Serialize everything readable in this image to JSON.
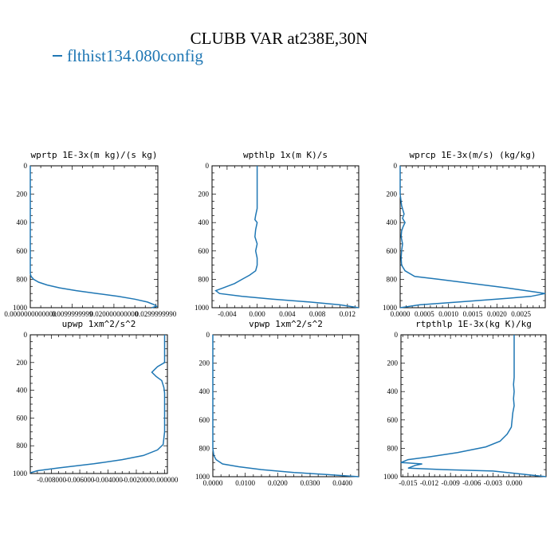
{
  "title": "CLUBB VAR at238E,30N",
  "legend_label": "flthist134.080config",
  "colors": {
    "series": "#1f77b4",
    "axes": "#000000"
  },
  "chart_data": [
    {
      "type": "line",
      "title": "wprtp  1E-3x(m kg)/(s kg)",
      "xlim": [
        0,
        0.0305
      ],
      "ylim": [
        1000,
        0
      ],
      "xticks": [
        0,
        0.01,
        0.02,
        0.03
      ],
      "xtick_labels": [
        "0.0000000000000",
        "0.0099999999",
        "0.020000000000",
        "0.0299999990"
      ],
      "yticks": [
        0,
        200,
        400,
        600,
        800,
        1000
      ],
      "series": [
        {
          "points": [
            [
              0.0,
              0
            ],
            [
              0.0,
              100
            ],
            [
              0.0,
              200
            ],
            [
              0.0,
              300
            ],
            [
              0.0,
              400
            ],
            [
              0.0,
              500
            ],
            [
              0.0,
              600
            ],
            [
              0.0,
              700
            ],
            [
              0.0,
              760
            ],
            [
              0.0002,
              780
            ],
            [
              0.0008,
              800
            ],
            [
              0.002,
              820
            ],
            [
              0.004,
              840
            ],
            [
              0.007,
              860
            ],
            [
              0.011,
              880
            ],
            [
              0.016,
              900
            ],
            [
              0.021,
              920
            ],
            [
              0.025,
              940
            ],
            [
              0.028,
              960
            ],
            [
              0.0297,
              980
            ],
            [
              0.0302,
              990
            ],
            [
              0.029,
              1000
            ]
          ]
        }
      ]
    },
    {
      "type": "line",
      "title": "wpthlp  1x(m K)/s",
      "xlim": [
        -0.006,
        0.0135
      ],
      "ylim": [
        1000,
        0
      ],
      "xticks": [
        -0.004,
        0,
        0.004,
        0.008,
        0.012
      ],
      "xtick_labels": [
        "-0.004",
        "0.000",
        "0.004",
        "0.008",
        "0.012"
      ],
      "yticks": [
        0,
        200,
        400,
        600,
        800,
        1000
      ],
      "series": [
        {
          "points": [
            [
              0.0,
              0
            ],
            [
              0.0,
              100
            ],
            [
              0.0,
              200
            ],
            [
              0.0,
              300
            ],
            [
              -0.0002,
              350
            ],
            [
              -0.0003,
              380
            ],
            [
              0.0,
              400
            ],
            [
              -0.0002,
              450
            ],
            [
              -0.0003,
              500
            ],
            [
              0.0,
              550
            ],
            [
              -0.0002,
              600
            ],
            [
              0.0,
              650
            ],
            [
              0.0,
              700
            ],
            [
              -0.0002,
              740
            ],
            [
              -0.001,
              770
            ],
            [
              -0.002,
              800
            ],
            [
              -0.003,
              830
            ],
            [
              -0.0045,
              860
            ],
            [
              -0.0055,
              880
            ],
            [
              -0.005,
              900
            ],
            [
              -0.002,
              920
            ],
            [
              0.002,
              940
            ],
            [
              0.007,
              960
            ],
            [
              0.011,
              980
            ],
            [
              0.0135,
              1000
            ]
          ]
        }
      ]
    },
    {
      "type": "line",
      "title": "wprcp  1E-3x(m/s) (kg/kg)",
      "xlim": [
        0,
        0.003
      ],
      "ylim": [
        1000,
        0
      ],
      "xticks": [
        0,
        0.0005,
        0.001,
        0.0015,
        0.002,
        0.0025
      ],
      "xtick_labels": [
        "0.0000",
        "0.0005",
        "0.0010",
        "0.0015",
        "0.0020",
        "0.0025"
      ],
      "yticks": [
        0,
        200,
        400,
        600,
        800,
        1000
      ],
      "series": [
        {
          "points": [
            [
              0.0,
              0
            ],
            [
              0.0,
              100
            ],
            [
              0.0,
              200
            ],
            [
              3e-05,
              280
            ],
            [
              8e-05,
              340
            ],
            [
              5e-05,
              370
            ],
            [
              0.0001,
              400
            ],
            [
              6e-05,
              430
            ],
            [
              3e-05,
              460
            ],
            [
              2e-05,
              500
            ],
            [
              5e-05,
              550
            ],
            [
              3e-05,
              600
            ],
            [
              2e-05,
              650
            ],
            [
              3e-05,
              700
            ],
            [
              0.0001,
              740
            ],
            [
              0.0003,
              780
            ],
            [
              0.0008,
              800
            ],
            [
              0.0015,
              830
            ],
            [
              0.0022,
              860
            ],
            [
              0.0028,
              890
            ],
            [
              0.003,
              900
            ],
            [
              0.0027,
              920
            ],
            [
              0.002,
              940
            ],
            [
              0.0012,
              960
            ],
            [
              0.0004,
              980
            ],
            [
              0.0,
              1000
            ]
          ]
        }
      ]
    },
    {
      "type": "line",
      "title": "upwp  1xm^2/s^2",
      "xlim": [
        -0.0095,
        0.0002
      ],
      "ylim": [
        1000,
        0
      ],
      "xticks": [
        -0.008,
        -0.006,
        -0.004,
        -0.002,
        0
      ],
      "xtick_labels": [
        "-0.008000",
        "-0.006000",
        "-0.004000",
        "-0.002000",
        "0.000000"
      ],
      "yticks": [
        0,
        200,
        400,
        600,
        800,
        1000
      ],
      "series": [
        {
          "points": [
            [
              0.0,
              0
            ],
            [
              0.0,
              100
            ],
            [
              0.0,
              200
            ],
            [
              -0.0005,
              230
            ],
            [
              -0.0009,
              270
            ],
            [
              -0.0006,
              300
            ],
            [
              -0.0002,
              330
            ],
            [
              -5e-05,
              380
            ],
            [
              0.0,
              420
            ],
            [
              0.0,
              500
            ],
            [
              0.0,
              600
            ],
            [
              0.0,
              700
            ],
            [
              -0.0001,
              790
            ],
            [
              -0.0005,
              830
            ],
            [
              -0.0015,
              870
            ],
            [
              -0.003,
              900
            ],
            [
              -0.005,
              930
            ],
            [
              -0.0075,
              960
            ],
            [
              -0.009,
              980
            ],
            [
              -0.0095,
              995
            ]
          ]
        }
      ]
    },
    {
      "type": "line",
      "title": "vpwp  1xm^2/s^2",
      "xlim": [
        0,
        0.045
      ],
      "ylim": [
        1000,
        0
      ],
      "xticks": [
        0,
        0.01,
        0.02,
        0.03,
        0.04
      ],
      "xtick_labels": [
        "0.0000",
        "0.0100",
        "0.0200",
        "0.0300",
        "0.0400"
      ],
      "yticks": [
        0,
        200,
        400,
        600,
        800,
        1000
      ],
      "series": [
        {
          "points": [
            [
              0.0,
              0
            ],
            [
              0.0,
              200
            ],
            [
              0.0,
              400
            ],
            [
              0.0,
              600
            ],
            [
              0.0,
              800
            ],
            [
              0.0003,
              850
            ],
            [
              0.001,
              880
            ],
            [
              0.003,
              910
            ],
            [
              0.008,
              930
            ],
            [
              0.015,
              950
            ],
            [
              0.025,
              970
            ],
            [
              0.035,
              985
            ],
            [
              0.045,
              1000
            ]
          ]
        }
      ]
    },
    {
      "type": "line",
      "title": "rtpthlp  1E-3x(kg K)/kg",
      "xlim": [
        -0.016,
        0.0045
      ],
      "ylim": [
        1000,
        0
      ],
      "xticks": [
        -0.015,
        -0.012,
        -0.009,
        -0.006,
        -0.003,
        0
      ],
      "xtick_labels": [
        "-0.015",
        "-0.012",
        "-0.009",
        "-0.006",
        "-0.003",
        "0.000"
      ],
      "yticks": [
        0,
        200,
        400,
        600,
        800,
        1000
      ],
      "series": [
        {
          "points": [
            [
              0.0,
              0
            ],
            [
              0.0,
              100
            ],
            [
              0.0,
              200
            ],
            [
              0.0,
              300
            ],
            [
              -0.0001,
              350
            ],
            [
              0.0,
              400
            ],
            [
              -0.0001,
              450
            ],
            [
              0.0,
              500
            ],
            [
              -0.0002,
              550
            ],
            [
              -0.0003,
              600
            ],
            [
              -0.0004,
              650
            ],
            [
              -0.001,
              700
            ],
            [
              -0.002,
              750
            ],
            [
              -0.004,
              790
            ],
            [
              -0.008,
              830
            ],
            [
              -0.012,
              860
            ],
            [
              -0.015,
              880
            ],
            [
              -0.016,
              900
            ],
            [
              -0.013,
              910
            ],
            [
              -0.014,
              920
            ],
            [
              -0.015,
              940
            ],
            [
              -0.01,
              950
            ],
            [
              -0.003,
              960
            ],
            [
              0.0045,
              1000
            ]
          ]
        }
      ]
    }
  ]
}
